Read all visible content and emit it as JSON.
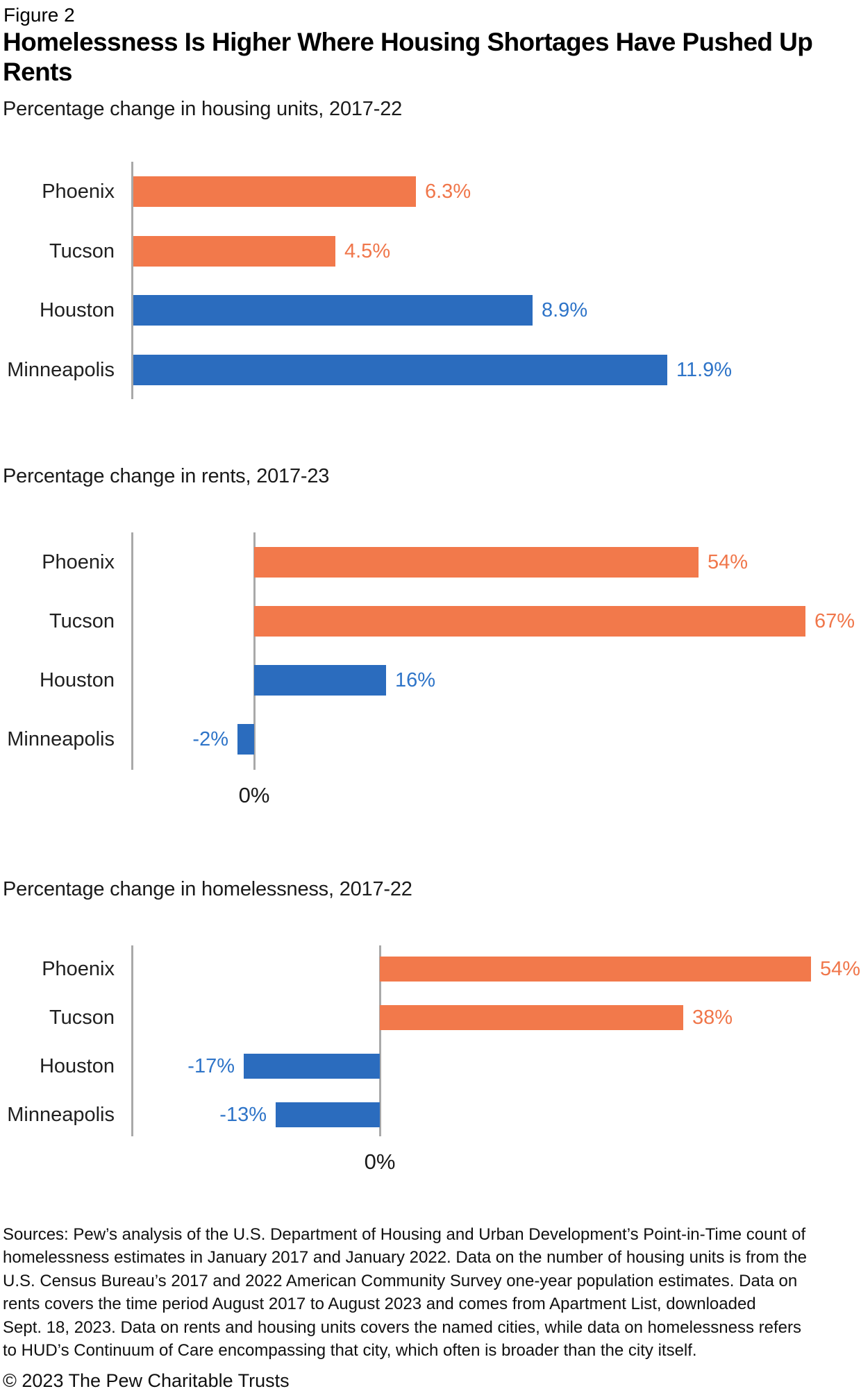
{
  "figure_label": "Figure 2",
  "title_lines": [
    "Homelessness Is Higher Where Housing Shortages Have Pushed Up",
    "Rents"
  ],
  "colors": {
    "orange_bar": "#F2794B",
    "orange_label": "#F0764A",
    "blue_bar": "#2B6CBE",
    "blue_label": "#2E74C8",
    "axis_gray": "#A9A9A9"
  },
  "chart_data": [
    {
      "type": "bar",
      "orientation": "horizontal",
      "title": "Percentage change in housing units, 2017-22",
      "categories": [
        "Phoenix",
        "Tucson",
        "Houston",
        "Minneapolis"
      ],
      "values": [
        6.3,
        4.5,
        8.9,
        11.9
      ],
      "value_labels": [
        "6.3%",
        "4.5%",
        "8.9%",
        "11.9%"
      ],
      "bar_colors": [
        "orange",
        "orange",
        "blue",
        "blue"
      ],
      "xlim": [
        0,
        12.5
      ],
      "zero_axis_label": "",
      "grid": false,
      "legend": false
    },
    {
      "type": "bar",
      "orientation": "horizontal",
      "title": "Percentage change in rents, 2017-23",
      "categories": [
        "Phoenix",
        "Tucson",
        "Houston",
        "Minneapolis"
      ],
      "values": [
        54,
        67,
        16,
        -2
      ],
      "value_labels": [
        "54%",
        "67%",
        "16%",
        "-2%"
      ],
      "bar_colors": [
        "orange",
        "orange",
        "blue",
        "blue"
      ],
      "xlim": [
        -15,
        68
      ],
      "zero_axis_label": "0%",
      "grid": false,
      "legend": false
    },
    {
      "type": "bar",
      "orientation": "horizontal",
      "title": "Percentage change in homelessness, 2017-22",
      "categories": [
        "Phoenix",
        "Tucson",
        "Houston",
        "Minneapolis"
      ],
      "values": [
        54,
        38,
        -17,
        -13
      ],
      "value_labels": [
        "54%",
        "38%",
        "-17%",
        "-13%"
      ],
      "bar_colors": [
        "orange",
        "orange",
        "blue",
        "blue"
      ],
      "xlim": [
        -31,
        55
      ],
      "zero_axis_label": "0%",
      "grid": false,
      "legend": false
    }
  ],
  "sources_lines": [
    "Sources: Pew’s analysis of the U.S. Department of Housing and Urban Development’s Point-in-Time count of",
    "homelessness estimates in January 2017 and January 2022. Data on the number of housing units is from the",
    "U.S. Census Bureau’s 2017 and 2022 American Community Survey one-year population estimates. Data on",
    "rents covers the time period August 2017 to August 2023 and comes from Apartment List, downloaded",
    "Sept. 18, 2023. Data on rents and housing units covers the named cities, while data on homelessness refers",
    "to HUD’s Continuum of Care encompassing that city, which often is broader than the city itself."
  ],
  "copyright": "© 2023 The Pew Charitable Trusts"
}
